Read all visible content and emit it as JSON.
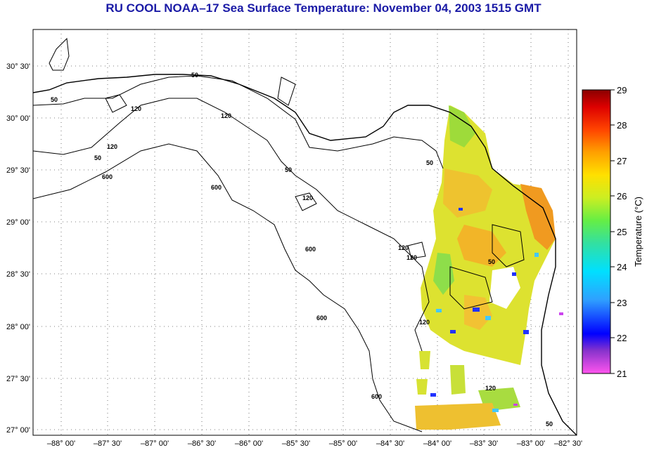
{
  "title": "RU COOL  NOAA–17  Sea Surface Temperature:  November 04, 2003 1515 GMT",
  "lat_ticks": [
    "30° 30'",
    "30° 00'",
    "29° 30'",
    "29° 00'",
    "28° 30'",
    "28° 00'",
    "27° 30'",
    "27° 00'"
  ],
  "lon_ticks": [
    "–88° 00'",
    "–87° 30'",
    "–87° 00'",
    "–86° 30'",
    "–86° 00'",
    "–85° 30'",
    "–85° 00'",
    "–84° 30'",
    "–84° 00'",
    "–83° 30'",
    "–83° 00'",
    "–82° 30'"
  ],
  "contour_labels": [
    "50",
    "50",
    "120",
    "120",
    "120",
    "50",
    "600",
    "600",
    "120",
    "50",
    "50",
    "120",
    "120",
    "600",
    "600",
    "50",
    "120",
    "600",
    "120",
    "50"
  ],
  "colorbar": {
    "ticks": [
      "29",
      "28",
      "27",
      "26",
      "25",
      "24",
      "23",
      "22",
      "21"
    ],
    "label": "Temperature (°C)",
    "colors": [
      "#ff55ee",
      "#8833cc",
      "#0000ff",
      "#2fa0ff",
      "#00e0ff",
      "#33e0a0",
      "#66ee44",
      "#ccee22",
      "#ffe000",
      "#ffa000",
      "#ff4400",
      "#dd0000",
      "#8a0000"
    ]
  }
}
